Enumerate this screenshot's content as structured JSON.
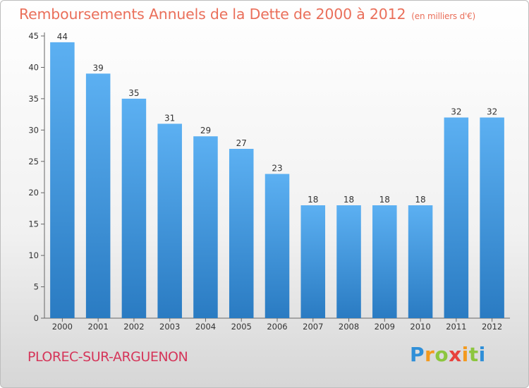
{
  "title": "Remboursements Annuels de la Dette de 2000 à 2012",
  "subtitle_unit": "(en milliers d'€)",
  "place_name": "PLOREC-SUR-ARGUENON",
  "logo_text": "Proxiti",
  "colors": {
    "bar": "#3d8fd6",
    "bar_light": "#5aaef0",
    "title": "#ea6f5a",
    "place": "#d5365a"
  },
  "chart_data": {
    "type": "bar",
    "title": "Remboursements Annuels de la Dette de 2000 à 2012",
    "categories": [
      "2000",
      "2001",
      "2002",
      "2003",
      "2004",
      "2005",
      "2006",
      "2007",
      "2008",
      "2009",
      "2010",
      "2011",
      "2012"
    ],
    "values": [
      44,
      39,
      35,
      31,
      29,
      27,
      23,
      18,
      18,
      18,
      18,
      32,
      32
    ],
    "ylim": [
      0,
      45
    ],
    "yticks": [
      0,
      5,
      10,
      15,
      20,
      25,
      30,
      35,
      40,
      45
    ],
    "grid": false,
    "legend": "none"
  }
}
